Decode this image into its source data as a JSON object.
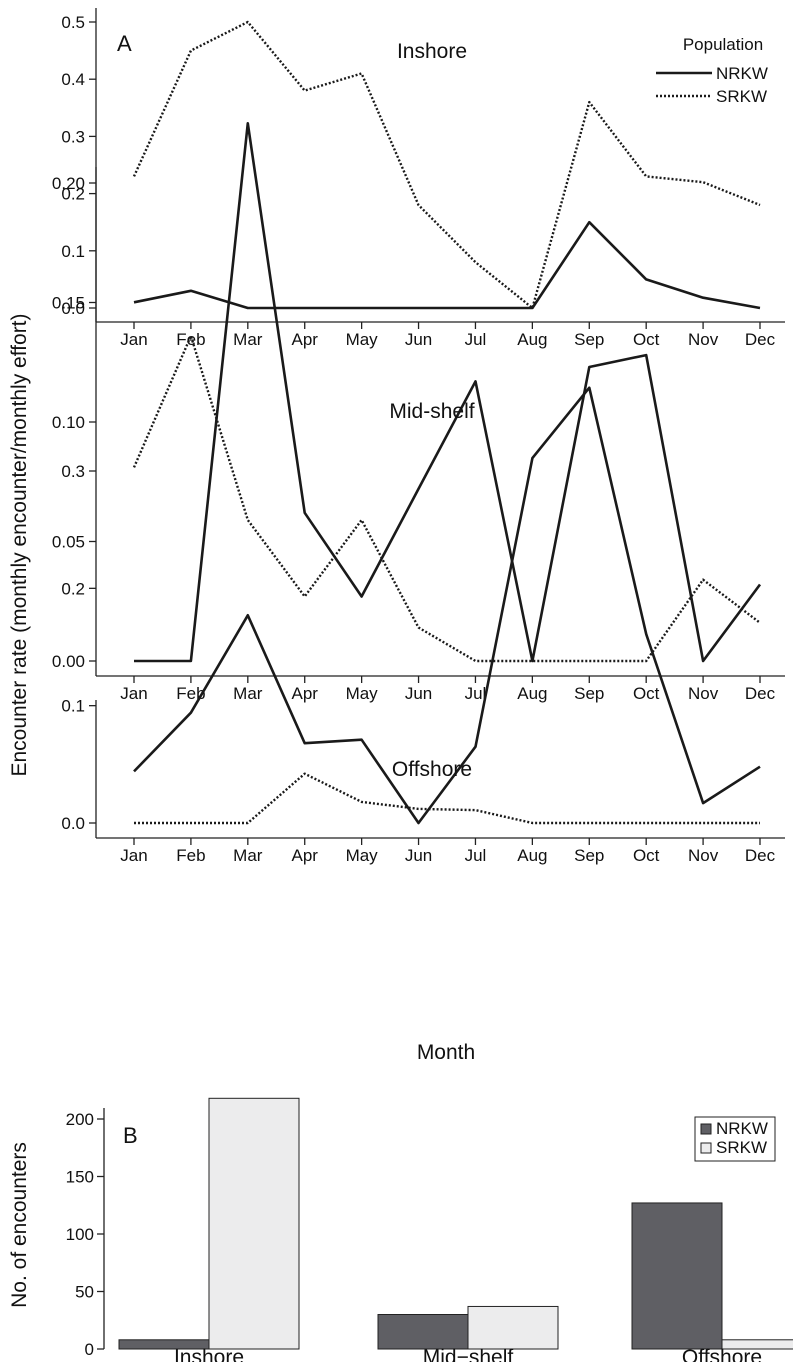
{
  "ylabel_main": "Encounter rate (monthly encounter/monthly effort)",
  "xlabel_main": "Month",
  "legend_title": "Population",
  "colors": {
    "NRKW_bar": "#5f5f64",
    "SRKW_bar": "#ececed",
    "line": "#1a1a1a"
  },
  "chart_data": [
    {
      "type": "line",
      "label": "A",
      "title": "Inshore",
      "categories": [
        "Jan",
        "Feb",
        "Mar",
        "Apr",
        "May",
        "Jun",
        "Jul",
        "Aug",
        "Sep",
        "Oct",
        "Nov",
        "Dec"
      ],
      "ylim": [
        0,
        0.5
      ],
      "yticks": [
        "0.0",
        "0.1",
        "0.2",
        "0.3",
        "0.4",
        "0.5"
      ],
      "legend": [
        "NRKW",
        "SRKW"
      ],
      "legend_position": "top-right",
      "series": [
        {
          "name": "NRKW",
          "style": "solid",
          "values": [
            0.01,
            0.03,
            0.0,
            0.0,
            0.0,
            0.0,
            0.0,
            0.0,
            0.15,
            0.05,
            0.018,
            0.0
          ]
        },
        {
          "name": "SRKW",
          "style": "dotted",
          "values": [
            0.23,
            0.45,
            0.5,
            0.38,
            0.41,
            0.18,
            0.08,
            0.0,
            0.36,
            0.23,
            0.22,
            0.18
          ]
        }
      ]
    },
    {
      "type": "line",
      "title": "Mid-shelf",
      "categories": [
        "Jan",
        "Feb",
        "Mar",
        "Apr",
        "May",
        "Jun",
        "Jul",
        "Aug",
        "Sep",
        "Oct",
        "Nov",
        "Dec"
      ],
      "ylim": [
        0,
        0.2
      ],
      "yticks": [
        "0.00",
        "0.05",
        "0.10",
        "0.15",
        "0.20"
      ],
      "series": [
        {
          "name": "NRKW",
          "style": "solid",
          "values": [
            0.0,
            0.0,
            0.225,
            0.062,
            0.027,
            0.072,
            0.117,
            0.0,
            0.123,
            0.128,
            0.0,
            0.032
          ]
        },
        {
          "name": "SRKW",
          "style": "dotted",
          "values": [
            0.081,
            0.136,
            0.059,
            0.027,
            0.059,
            0.014,
            0.0,
            0.0,
            0.0,
            0.0,
            0.034,
            0.016
          ]
        }
      ]
    },
    {
      "type": "line",
      "title": "Offshore",
      "categories": [
        "Jan",
        "Feb",
        "Mar",
        "Apr",
        "May",
        "Jun",
        "Jul",
        "Aug",
        "Sep",
        "Oct",
        "Nov",
        "Dec"
      ],
      "ylim": [
        0,
        0.3
      ],
      "yticks": [
        "0.0",
        "0.1",
        "0.2",
        "0.3"
      ],
      "series": [
        {
          "name": "NRKW",
          "style": "solid",
          "values": [
            0.044,
            0.094,
            0.177,
            0.068,
            0.071,
            0.0,
            0.065,
            0.311,
            0.371,
            0.161,
            0.017,
            0.048
          ]
        },
        {
          "name": "SRKW",
          "style": "dotted",
          "values": [
            0.0,
            0.0,
            0.0,
            0.042,
            0.018,
            0.012,
            0.011,
            0.0,
            0.0,
            0.0,
            0.0,
            0.0
          ]
        }
      ]
    },
    {
      "type": "bar",
      "label": "B",
      "ylabel": "No. of encounters",
      "categories": [
        "Inshore",
        "Mid−shelf",
        "Offshore"
      ],
      "ylim": [
        0,
        200
      ],
      "yticks": [
        "0",
        "50",
        "100",
        "150",
        "200"
      ],
      "legend": [
        "NRKW",
        "SRKW"
      ],
      "legend_position": "top-right",
      "series": [
        {
          "name": "NRKW",
          "values": [
            8,
            30,
            127
          ]
        },
        {
          "name": "SRKW",
          "values": [
            218,
            37,
            8
          ]
        }
      ]
    }
  ]
}
